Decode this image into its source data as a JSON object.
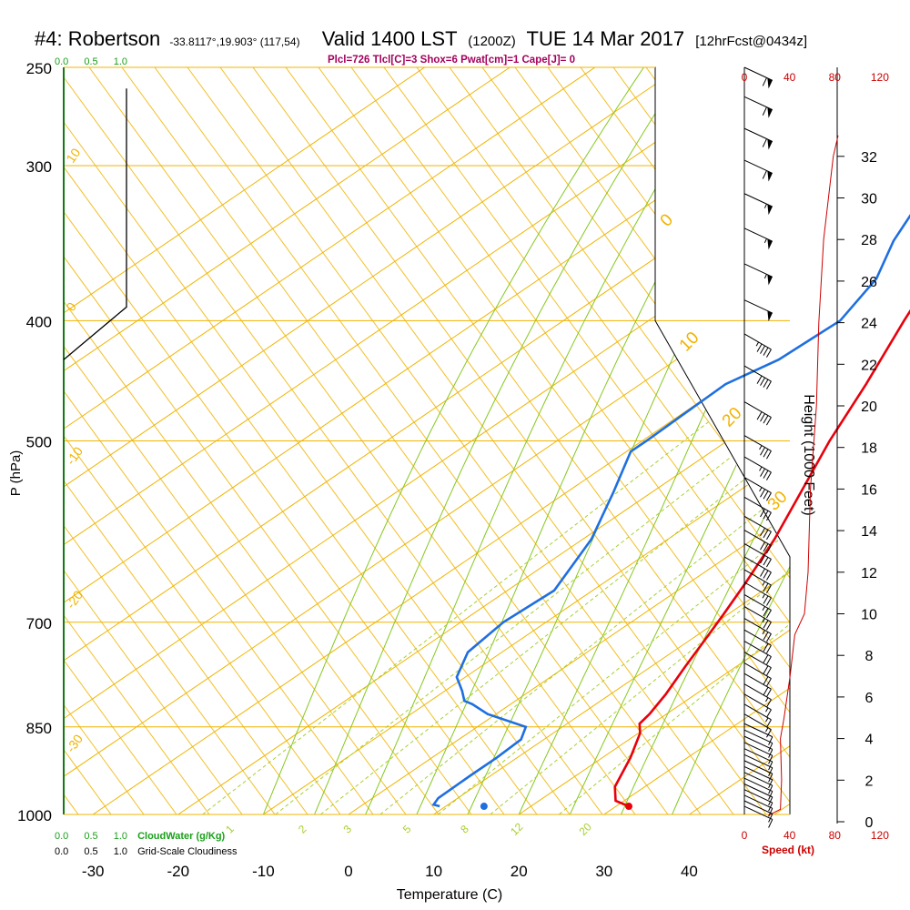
{
  "header": {
    "station": "#4: Robertson",
    "coords": "-33.8117°,19.903° (117,54)",
    "valid": "Valid 1400 LST",
    "utc": "(1200Z)",
    "date": "TUE 14 Mar 2017",
    "forecast": "[12hrFcst@0434z]"
  },
  "indices": "Plcl=726 Tlcl[C]=3 Shox=6 Pwat[cm]=1 Cape[J]= 0",
  "legend": {
    "cloudwater_label": "CloudWater (g/Kg)",
    "cloudiness_label": "Grid-Scale Cloudiness",
    "scale_green": [
      "0.0",
      "0.5",
      "1.0"
    ],
    "scale_black": [
      "0.0",
      "0.5",
      "1.0"
    ]
  },
  "colors": {
    "temperature": "#e8000b",
    "dewpoint": "#1f6fe0",
    "isotherm": "#f0b400",
    "dry_adiabat": "#86c81e",
    "mixing_ratio": "#a8d030",
    "speed": "#cc0000",
    "cloudwater": "#1aa01a"
  },
  "chart_data": {
    "type": "skew-t",
    "xlabel": "Temperature (C)",
    "ylabel": "P (hPa)",
    "y2label": "Height (1000 Feet)",
    "speed_label": "Speed (kt)",
    "x_ticks": [
      -30,
      -20,
      -10,
      0,
      10,
      20,
      30,
      40
    ],
    "p_ticks": [
      250,
      300,
      400,
      500,
      700,
      850,
      1000
    ],
    "height_ticks": [
      0,
      2,
      4,
      6,
      8,
      10,
      12,
      14,
      16,
      18,
      20,
      22,
      24,
      26,
      28,
      30,
      32
    ],
    "speed_ticks": [
      0,
      40,
      80,
      120
    ],
    "mixing_ratio_labels": [
      "1",
      "2",
      "3",
      "5",
      "8",
      "12",
      "20"
    ],
    "isotherm_labels_left": [
      "10",
      "0",
      "-10",
      "-20",
      "-30"
    ],
    "isotherm_labels_right": [
      "0",
      "10",
      "20",
      "30"
    ],
    "temperature": [
      {
        "p": 985,
        "t": 31.5
      },
      {
        "p": 975,
        "t": 29.0
      },
      {
        "p": 950,
        "t": 26.5
      },
      {
        "p": 900,
        "t": 23.3
      },
      {
        "p": 860,
        "t": 20.2
      },
      {
        "p": 845,
        "t": 18.5
      },
      {
        "p": 830,
        "t": 18.0
      },
      {
        "p": 800,
        "t": 16.5
      },
      {
        "p": 760,
        "t": 14.0
      },
      {
        "p": 720,
        "t": 11.5
      },
      {
        "p": 690,
        "t": 9.5
      },
      {
        "p": 650,
        "t": 6.6
      },
      {
        "p": 600,
        "t": 2.5
      },
      {
        "p": 550,
        "t": -2.5
      },
      {
        "p": 500,
        "t": -8.0
      },
      {
        "p": 450,
        "t": -13.5
      },
      {
        "p": 400,
        "t": -20.0
      },
      {
        "p": 350,
        "t": -27.0
      },
      {
        "p": 300,
        "t": -37.0
      },
      {
        "p": 265,
        "t": -45.0
      }
    ],
    "dewpoint": [
      {
        "p": 985,
        "t": 9.3
      },
      {
        "p": 982,
        "t": 8.3
      },
      {
        "p": 970,
        "t": 7.7
      },
      {
        "p": 930,
        "t": 7.6
      },
      {
        "p": 900,
        "t": 7.6
      },
      {
        "p": 870,
        "t": 7.3
      },
      {
        "p": 850,
        "t": 5.7
      },
      {
        "p": 830,
        "t": -1.0
      },
      {
        "p": 815,
        "t": -4.5
      },
      {
        "p": 810,
        "t": -6.0
      },
      {
        "p": 795,
        "t": -8.0
      },
      {
        "p": 775,
        "t": -11.0
      },
      {
        "p": 740,
        "t": -14.0
      },
      {
        "p": 700,
        "t": -15.0
      },
      {
        "p": 660,
        "t": -14.5
      },
      {
        "p": 600,
        "t": -19.0
      },
      {
        "p": 550,
        "t": -24.5
      },
      {
        "p": 510,
        "t": -29.5
      },
      {
        "p": 500,
        "t": -29.5
      },
      {
        "p": 450,
        "t": -30.0
      },
      {
        "p": 430,
        "t": -28.0
      },
      {
        "p": 400,
        "t": -27.5
      },
      {
        "p": 370,
        "t": -30.5
      },
      {
        "p": 345,
        "t": -35.0
      },
      {
        "p": 265,
        "t": -48.5
      }
    ],
    "surface_dewpoint": {
      "p": 985,
      "t": 14.5
    },
    "cloudiness_profile": [
      {
        "p": 260,
        "v": 0.75
      },
      {
        "p": 390,
        "v": 0.75
      },
      {
        "p": 430,
        "v": 0.0
      }
    ],
    "wind_speed_profile": [
      {
        "h": 0.3,
        "kt": 20
      },
      {
        "h": 0.6,
        "kt": 30
      },
      {
        "h": 2.0,
        "kt": 31
      },
      {
        "h": 4.0,
        "kt": 30
      },
      {
        "h": 5.0,
        "kt": 33
      },
      {
        "h": 7.0,
        "kt": 38
      },
      {
        "h": 9.0,
        "kt": 42
      },
      {
        "h": 10.0,
        "kt": 50
      },
      {
        "h": 12.0,
        "kt": 53
      },
      {
        "h": 16.0,
        "kt": 55
      },
      {
        "h": 20.0,
        "kt": 60
      },
      {
        "h": 24.0,
        "kt": 62
      },
      {
        "h": 28.0,
        "kt": 66
      },
      {
        "h": 32.0,
        "kt": 74
      },
      {
        "h": 33.0,
        "kt": 78
      }
    ],
    "wind_barbs": [
      {
        "p": 985,
        "dir": 295,
        "kt": 10
      },
      {
        "p": 975,
        "dir": 295,
        "kt": 10
      },
      {
        "p": 965,
        "dir": 295,
        "kt": 10
      },
      {
        "p": 955,
        "dir": 295,
        "kt": 10
      },
      {
        "p": 945,
        "dir": 295,
        "kt": 10
      },
      {
        "p": 935,
        "dir": 295,
        "kt": 10
      },
      {
        "p": 925,
        "dir": 295,
        "kt": 10
      },
      {
        "p": 915,
        "dir": 295,
        "kt": 10
      },
      {
        "p": 905,
        "dir": 295,
        "kt": 10
      },
      {
        "p": 895,
        "dir": 295,
        "kt": 10
      },
      {
        "p": 885,
        "dir": 295,
        "kt": 10
      },
      {
        "p": 875,
        "dir": 295,
        "kt": 10
      },
      {
        "p": 865,
        "dir": 295,
        "kt": 10
      },
      {
        "p": 855,
        "dir": 295,
        "kt": 10
      },
      {
        "p": 845,
        "dir": 295,
        "kt": 10
      },
      {
        "p": 830,
        "dir": 300,
        "kt": 15
      },
      {
        "p": 815,
        "dir": 300,
        "kt": 15
      },
      {
        "p": 800,
        "dir": 300,
        "kt": 15
      },
      {
        "p": 785,
        "dir": 300,
        "kt": 15
      },
      {
        "p": 770,
        "dir": 300,
        "kt": 20
      },
      {
        "p": 755,
        "dir": 300,
        "kt": 20
      },
      {
        "p": 740,
        "dir": 300,
        "kt": 20
      },
      {
        "p": 725,
        "dir": 300,
        "kt": 20
      },
      {
        "p": 710,
        "dir": 300,
        "kt": 20
      },
      {
        "p": 695,
        "dir": 300,
        "kt": 25
      },
      {
        "p": 680,
        "dir": 300,
        "kt": 25
      },
      {
        "p": 665,
        "dir": 300,
        "kt": 25
      },
      {
        "p": 650,
        "dir": 300,
        "kt": 25
      },
      {
        "p": 635,
        "dir": 300,
        "kt": 25
      },
      {
        "p": 620,
        "dir": 300,
        "kt": 30
      },
      {
        "p": 605,
        "dir": 300,
        "kt": 30
      },
      {
        "p": 590,
        "dir": 300,
        "kt": 30
      },
      {
        "p": 575,
        "dir": 300,
        "kt": 30
      },
      {
        "p": 555,
        "dir": 300,
        "kt": 30
      },
      {
        "p": 535,
        "dir": 300,
        "kt": 35
      },
      {
        "p": 515,
        "dir": 300,
        "kt": 35
      },
      {
        "p": 495,
        "dir": 300,
        "kt": 35
      },
      {
        "p": 465,
        "dir": 300,
        "kt": 40
      },
      {
        "p": 435,
        "dir": 300,
        "kt": 40
      },
      {
        "p": 410,
        "dir": 300,
        "kt": 45
      },
      {
        "p": 385,
        "dir": 295,
        "kt": 50
      },
      {
        "p": 360,
        "dir": 295,
        "kt": 55
      },
      {
        "p": 337,
        "dir": 295,
        "kt": 55
      },
      {
        "p": 316,
        "dir": 295,
        "kt": 55
      },
      {
        "p": 297,
        "dir": 295,
        "kt": 60
      },
      {
        "p": 280,
        "dir": 295,
        "kt": 60
      },
      {
        "p": 264,
        "dir": 295,
        "kt": 60
      },
      {
        "p": 250,
        "dir": 295,
        "kt": 60
      }
    ]
  }
}
